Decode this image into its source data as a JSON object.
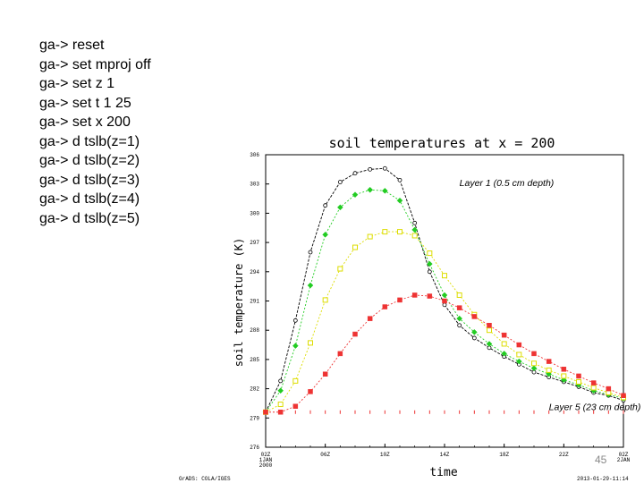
{
  "console": {
    "lines": [
      "ga-> reset",
      "ga-> set mproj off",
      "ga-> set z 1",
      "ga-> set t 1 25",
      "ga-> set x 200",
      "ga-> d tslb(z=1)",
      "ga-> d tslb(z=2)",
      "ga-> d tslb(z=3)",
      "ga-> d tslb(z=4)",
      "ga-> d tslb(z=5)"
    ]
  },
  "page_number": "45",
  "chart_data": {
    "type": "line",
    "title": "soil temperatures at x = 200",
    "xlabel": "time",
    "ylabel": "soil temperature (K)",
    "ylim": [
      276,
      306
    ],
    "yticks": [
      276,
      279,
      282,
      285,
      288,
      291,
      294,
      297,
      300,
      303,
      306
    ],
    "xlim": [
      1,
      25
    ],
    "xtick_positions": [
      1,
      5,
      9,
      13,
      17,
      21,
      25
    ],
    "xtick_labels": [
      "02Z\n1JAN\n2000",
      "06Z",
      "10Z",
      "14Z",
      "18Z",
      "22Z",
      "02Z\n2JAN"
    ],
    "grid": false,
    "footer_left": "GrADS: COLA/IGES",
    "footer_right": "2013-01-29-11:14",
    "annotations": [
      {
        "text": "Layer 1 (0.5 cm depth)",
        "x": 14,
        "y": 302.8
      },
      {
        "text": "Layer 5 (23 cm depth)",
        "x": 20,
        "y": 279.8
      }
    ],
    "series": [
      {
        "color": "#000000",
        "marker": "circle",
        "values": [
          279.6,
          282.8,
          289,
          296,
          300.8,
          303.2,
          304.1,
          304.5,
          304.6,
          303.4,
          299,
          294,
          290.6,
          288.5,
          287.2,
          286.2,
          285.3,
          284.5,
          283.7,
          283.2,
          282.7,
          282.2,
          281.6,
          281.3,
          280.8
        ]
      },
      {
        "color": "#22cc22",
        "marker": "diamond",
        "values": [
          279.6,
          281.8,
          286.4,
          292.6,
          297.8,
          300.6,
          301.9,
          302.4,
          302.3,
          301.3,
          298.3,
          294.8,
          291.6,
          289.2,
          287.8,
          286.6,
          285.6,
          284.8,
          284.1,
          283.5,
          282.9,
          282.4,
          281.8,
          281.4,
          281
        ]
      },
      {
        "color": "#dddd00",
        "marker": "square-open",
        "values": [
          279.6,
          280.4,
          282.8,
          286.7,
          291.1,
          294.3,
          296.5,
          297.6,
          298.1,
          298.1,
          297.7,
          295.9,
          293.6,
          291.6,
          289.6,
          288,
          286.6,
          285.5,
          284.6,
          283.9,
          283.3,
          282.7,
          282.1,
          281.6,
          281.1
        ]
      },
      {
        "color": "#ee3333",
        "marker": "square",
        "values": [
          279.6,
          279.6,
          280.2,
          281.7,
          283.5,
          285.6,
          287.6,
          289.2,
          290.4,
          291.1,
          291.6,
          291.5,
          291,
          290.3,
          289.4,
          288.5,
          287.5,
          286.5,
          285.6,
          284.8,
          284,
          283.3,
          282.6,
          282,
          281.3
        ]
      }
    ]
  }
}
